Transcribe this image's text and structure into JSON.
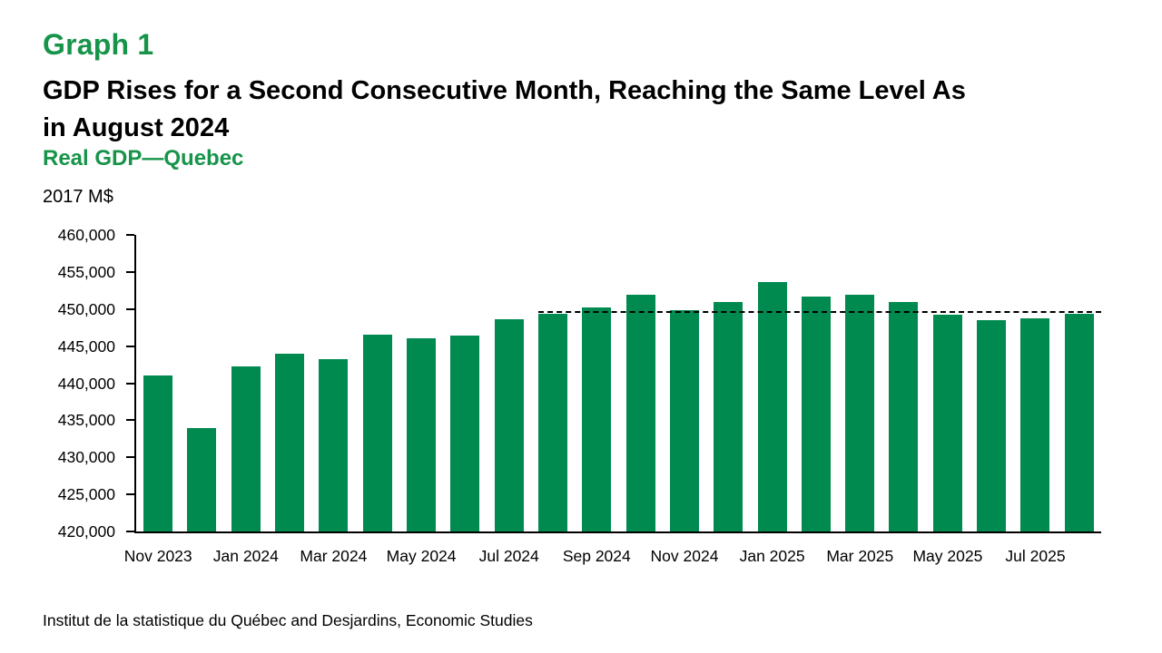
{
  "header": {
    "graph_label": "Graph 1",
    "title_line1": "GDP Rises for a Second Consecutive Month, Reaching the Same Level As",
    "title_line2": "in August 2024",
    "subtitle": "Real GDP—Quebec",
    "unit_label": "2017 M$"
  },
  "footer": {
    "source": "Institut de la statistique du Québec and Desjardins, Economic Studies"
  },
  "colors": {
    "accent_green": "#17944a",
    "bar_green": "#008a50",
    "axis_black": "#000000",
    "background": "#ffffff"
  },
  "chart_data": {
    "type": "bar",
    "title": "Real GDP—Quebec",
    "unit": "2017 M$",
    "categories": [
      "Nov 2023",
      "Dec 2023",
      "Jan 2024",
      "Feb 2024",
      "Mar 2024",
      "Apr 2024",
      "May 2024",
      "Jun 2024",
      "Jul 2024",
      "Aug 2024",
      "Sep 2024",
      "Oct 2024",
      "Nov 2024",
      "Dec 2024",
      "Jan 2025",
      "Feb 2025",
      "Mar 2025",
      "Apr 2025",
      "May 2025",
      "Jun 2025",
      "Jul 2025",
      "Aug 2025"
    ],
    "values": [
      441100,
      434000,
      442300,
      444000,
      443300,
      446500,
      446000,
      446400,
      448600,
      449400,
      450200,
      451900,
      449900,
      451000,
      453700,
      451700,
      451900,
      451000,
      449300,
      448500,
      448800,
      449400
    ],
    "x_tick_labels": [
      "Nov 2023",
      "Jan 2024",
      "Mar 2024",
      "May 2024",
      "Jul 2024",
      "Sep 2024",
      "Nov 2024",
      "Jan 2025",
      "Mar 2025",
      "May 2025",
      "Jul 2025"
    ],
    "x_tick_indices": [
      0,
      2,
      4,
      6,
      8,
      10,
      12,
      14,
      16,
      18,
      20
    ],
    "ylim": [
      420000,
      460000
    ],
    "y_tick_step": 5000,
    "y_tick_format": "thousands-comma",
    "reference_line": {
      "value": 449400,
      "start_category": "Aug 2024",
      "start_index": 9,
      "style": "dashed"
    },
    "grid": false,
    "legend": false,
    "bar_color": "#008a50"
  }
}
